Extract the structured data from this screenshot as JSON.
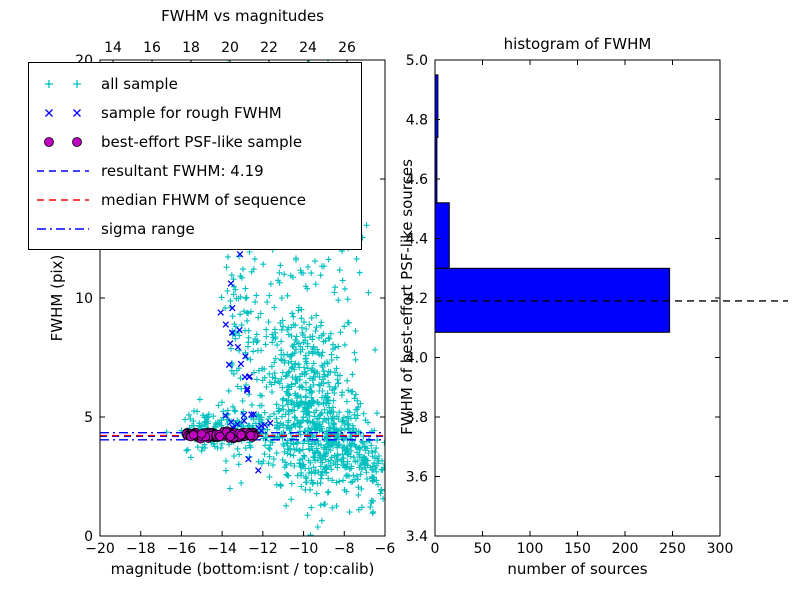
{
  "chart_data": [
    {
      "type": "scatter",
      "title": "FWHM vs magnitudes",
      "xlabel": "magnitude (bottom:isnt / top:calib)",
      "ylabel": "FWHM (pix)",
      "xlim": [
        -20,
        -6
      ],
      "ylim": [
        0,
        20
      ],
      "xticks": [
        -20,
        -18,
        -16,
        -14,
        -12,
        -10,
        -8,
        -6
      ],
      "xtick_labels": [
        "−20",
        "−18",
        "−16",
        "−14",
        "−12",
        "−10",
        "−8",
        "−6"
      ],
      "top_axis": {
        "ticks": [
          14,
          16,
          18,
          20,
          22,
          24,
          26
        ],
        "range": [
          13.33,
          27.95
        ]
      },
      "yticks": [
        0,
        5,
        10,
        15,
        20
      ],
      "series": [
        {
          "name": "all sample",
          "marker": "plus",
          "color": "#00bfbf",
          "clusters": [
            {
              "cx": -9.6,
              "cy": 5.0,
              "sx": 1.15,
              "sy": 1.7,
              "n": 480
            },
            {
              "cx": -8.5,
              "cy": 3.7,
              "sx": 0.9,
              "sy": 0.8,
              "n": 150
            },
            {
              "cx": -10.6,
              "cy": 7.3,
              "sx": 1.0,
              "sy": 2.0,
              "n": 140
            },
            {
              "cx": -9.4,
              "cy": 12.0,
              "sx": 1.4,
              "sy": 3.0,
              "n": 90
            },
            {
              "cx": -13.5,
              "cy": 11.0,
              "sx": 0.22,
              "sy": 4.6,
              "n": 70
            },
            {
              "cx": -12.95,
              "cy": 12.0,
              "sx": 0.18,
              "sy": 4.3,
              "n": 45
            },
            {
              "cx": -12.45,
              "cy": 8.0,
              "sx": 0.25,
              "sy": 2.4,
              "n": 25
            },
            {
              "cx": -14.2,
              "cy": 4.5,
              "sx": 0.85,
              "sy": 0.5,
              "n": 90
            },
            {
              "cx": -12.7,
              "cy": 4.35,
              "sx": 1.3,
              "sy": 0.4,
              "n": 110
            },
            {
              "cx": -7.1,
              "cy": 3.1,
              "sx": 0.7,
              "sy": 0.9,
              "n": 70
            },
            {
              "cx": -9.9,
              "cy": 16.5,
              "sx": 1.3,
              "sy": 2.2,
              "n": 35
            },
            {
              "cx": -14.9,
              "cy": 4.4,
              "sx": 0.4,
              "sy": 0.35,
              "n": 30
            },
            {
              "cx": -6.7,
              "cy": 2.6,
              "sx": 0.45,
              "sy": 0.7,
              "n": 35
            }
          ]
        },
        {
          "name": "sample for rough FWHM",
          "marker": "x",
          "color": "#0000ff",
          "clusters": [
            {
              "cx": -13.45,
              "cy": 9.8,
              "sx": 0.25,
              "sy": 1.5,
              "n": 10
            },
            {
              "cx": -12.95,
              "cy": 6.9,
              "sx": 0.2,
              "sy": 1.0,
              "n": 7
            },
            {
              "cx": -13.8,
              "cy": 4.6,
              "sx": 0.5,
              "sy": 0.3,
              "n": 8
            },
            {
              "cx": -12.3,
              "cy": 4.9,
              "sx": 0.4,
              "sy": 0.35,
              "n": 5
            },
            {
              "cx": -13.2,
              "cy": 12.2,
              "sx": 0.15,
              "sy": 0.5,
              "n": 3
            },
            {
              "cx": -11.7,
              "cy": 4.4,
              "sx": 0.3,
              "sy": 0.25,
              "n": 3
            },
            {
              "cx": -12.55,
              "cy": 3.1,
              "sx": 0.15,
              "sy": 0.15,
              "n": 2
            }
          ]
        },
        {
          "name": "best-effort PSF-like sample",
          "marker": "circle",
          "color": "#bf00bf",
          "edge_color": "#000000",
          "band": {
            "mag_from": -15.75,
            "mag_to": -12.35,
            "fwhm_center": 4.25,
            "fwhm_sigma": 0.06,
            "n": 130
          }
        }
      ],
      "lines": [
        {
          "name": "resultant FWHM",
          "value": 4.19,
          "color": "#0000ff",
          "style": "dashed"
        },
        {
          "name": "median FWHM of sequence",
          "value": 4.22,
          "color": "#ff0000",
          "style": "dashed"
        },
        {
          "name": "sigma range upper",
          "value": 4.34,
          "color": "#0000ff",
          "style": "dashdot"
        },
        {
          "name": "sigma range lower",
          "value": 4.04,
          "color": "#0000ff",
          "style": "dashdot"
        }
      ]
    },
    {
      "type": "bar",
      "orientation": "horizontal",
      "title": "histogram of FWHM",
      "xlabel": "number of sources",
      "ylabel": "FWHM of best-effort PSF-like sources",
      "xlim": [
        0,
        300
      ],
      "ylim": [
        3.4,
        5.0
      ],
      "xticks": [
        0,
        50,
        100,
        150,
        200,
        250,
        300
      ],
      "yticks": [
        3.4,
        3.6,
        3.8,
        4.0,
        4.2,
        4.4,
        4.6,
        4.8,
        5.0
      ],
      "bar_color": "#0000ff",
      "bar_edge_color": "#000000",
      "bins": [
        {
          "fwhm_from": 4.085,
          "fwhm_to": 4.3,
          "count": 247
        },
        {
          "fwhm_from": 4.3,
          "fwhm_to": 4.52,
          "count": 15
        },
        {
          "fwhm_from": 4.52,
          "fwhm_to": 4.74,
          "count": 2
        },
        {
          "fwhm_from": 4.74,
          "fwhm_to": 4.95,
          "count": 3
        }
      ],
      "reference_line": {
        "name": "median FWHM",
        "value": 4.19,
        "color": "#000000",
        "style": "dashed"
      }
    }
  ],
  "legend": {
    "entries": [
      {
        "label": "all sample",
        "marker": "plus",
        "color": "#00bfbf"
      },
      {
        "label": "sample for rough FWHM",
        "marker": "x",
        "color": "#0000ff"
      },
      {
        "label": "best-effort PSF-like sample",
        "marker": "circle",
        "color": "#bf00bf"
      },
      {
        "label": "resultant FWHM: 4.19",
        "marker": "line-dashed",
        "color": "#0000ff"
      },
      {
        "label": "median FHWM of sequence",
        "marker": "line-dashed",
        "color": "#ff0000"
      },
      {
        "label": "sigma range",
        "marker": "line-dashdot",
        "color": "#0000ff"
      }
    ]
  }
}
